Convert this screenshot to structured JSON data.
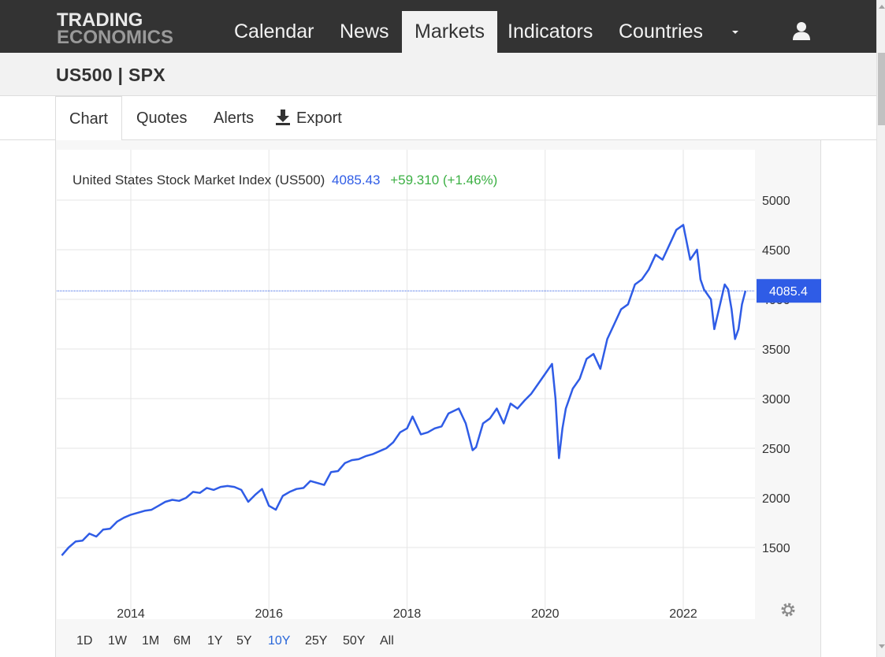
{
  "brand": {
    "line1": "TRADING",
    "line2": "ECONOMICS"
  },
  "nav": {
    "items": [
      "Calendar",
      "News",
      "Markets",
      "Indicators",
      "Countries"
    ],
    "active": "Markets",
    "more_icon": "caret-down-icon",
    "user_icon": "user-icon"
  },
  "page": {
    "title": "US500 | SPX"
  },
  "tabs": [
    {
      "label": "Chart",
      "active": true
    },
    {
      "label": "Quotes"
    },
    {
      "label": "Alerts"
    },
    {
      "label": "Export",
      "icon": "download-icon"
    }
  ],
  "ranges": {
    "items": [
      "1D",
      "1W",
      "1M",
      "6M",
      "1Y",
      "5Y",
      "10Y",
      "25Y",
      "50Y",
      "All"
    ],
    "selected": "10Y"
  },
  "chart_data": {
    "type": "line",
    "title": "United States Stock Market Index (US500)",
    "last_value": "4085.43",
    "change": "+59.310 (+1.46%)",
    "price_tag": "4085.4",
    "current_value": 4085.4,
    "colors": {
      "line": "#2f5ce6",
      "value": "#2f5ce6",
      "change": "#3cb044",
      "tag_bg": "#2f5ce6"
    },
    "x_ticks": [
      2014,
      2016,
      2018,
      2020,
      2022
    ],
    "y_ticks": [
      1500,
      2000,
      2500,
      3000,
      3500,
      4000,
      4500,
      5000
    ],
    "ylim": [
      1000,
      5000
    ],
    "xlim": [
      2012.9,
      2023.0
    ],
    "grid": true,
    "settings_icon": "gear-icon",
    "series": [
      {
        "x": [
          2013.0,
          2013.1,
          2013.2,
          2013.3,
          2013.4,
          2013.5,
          2013.6,
          2013.7,
          2013.8,
          2013.9,
          2014.0,
          2014.1,
          2014.2,
          2014.3,
          2014.4,
          2014.5,
          2014.6,
          2014.7,
          2014.8,
          2014.9,
          2015.0,
          2015.1,
          2015.2,
          2015.3,
          2015.4,
          2015.5,
          2015.6,
          2015.7,
          2015.8,
          2015.9,
          2016.0,
          2016.1,
          2016.2,
          2016.3,
          2016.4,
          2016.5,
          2016.6,
          2016.7,
          2016.8,
          2016.9,
          2017.0,
          2017.1,
          2017.2,
          2017.3,
          2017.4,
          2017.5,
          2017.6,
          2017.7,
          2017.8,
          2017.9,
          2018.0,
          2018.08,
          2018.2,
          2018.3,
          2018.4,
          2018.5,
          2018.6,
          2018.75,
          2018.85,
          2018.95,
          2019.0,
          2019.1,
          2019.2,
          2019.3,
          2019.4,
          2019.5,
          2019.6,
          2019.7,
          2019.8,
          2019.9,
          2020.0,
          2020.1,
          2020.15,
          2020.2,
          2020.25,
          2020.3,
          2020.4,
          2020.5,
          2020.6,
          2020.7,
          2020.8,
          2020.9,
          2021.0,
          2021.1,
          2021.2,
          2021.3,
          2021.4,
          2021.5,
          2021.6,
          2021.7,
          2021.8,
          2021.9,
          2022.0,
          2022.1,
          2022.2,
          2022.25,
          2022.3,
          2022.4,
          2022.45,
          2022.5,
          2022.6,
          2022.65,
          2022.7,
          2022.75,
          2022.8,
          2022.85,
          2022.9
        ],
        "y": [
          1420,
          1500,
          1560,
          1570,
          1640,
          1610,
          1680,
          1690,
          1760,
          1800,
          1830,
          1850,
          1870,
          1880,
          1920,
          1960,
          1980,
          1970,
          2000,
          2060,
          2050,
          2100,
          2080,
          2110,
          2120,
          2110,
          2080,
          1960,
          2030,
          2090,
          1920,
          1880,
          2020,
          2060,
          2090,
          2100,
          2170,
          2150,
          2130,
          2260,
          2270,
          2350,
          2380,
          2390,
          2420,
          2440,
          2470,
          2500,
          2560,
          2660,
          2700,
          2820,
          2640,
          2660,
          2700,
          2720,
          2850,
          2900,
          2750,
          2480,
          2510,
          2750,
          2800,
          2900,
          2750,
          2950,
          2900,
          2980,
          3050,
          3150,
          3250,
          3350,
          3000,
          2400,
          2700,
          2900,
          3100,
          3200,
          3400,
          3450,
          3300,
          3600,
          3750,
          3900,
          3950,
          4150,
          4200,
          4300,
          4450,
          4400,
          4550,
          4700,
          4750,
          4400,
          4500,
          4200,
          4100,
          4000,
          3700,
          3850,
          4150,
          4100,
          3900,
          3600,
          3700,
          3950,
          4085
        ]
      }
    ]
  }
}
